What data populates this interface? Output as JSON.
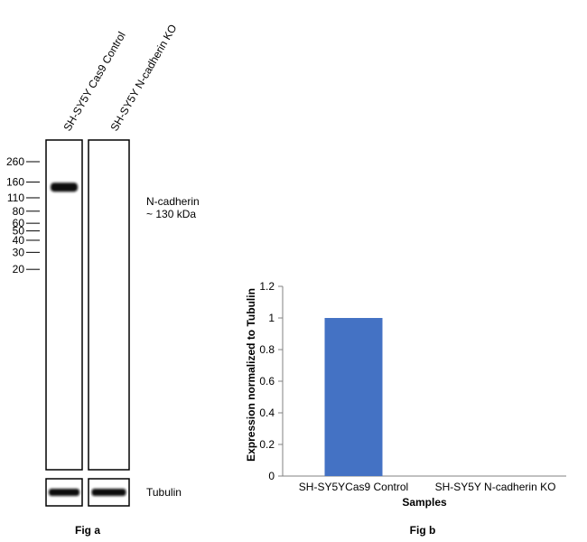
{
  "chart_data": [
    {
      "type": "western-blot",
      "lanes": [
        "SH-SY5Y Cas9 Control",
        "SH-SY5Y N-cadherin KO"
      ],
      "markers": [
        260,
        160,
        110,
        80,
        60,
        50,
        40,
        30,
        20
      ],
      "band_label_line1": "N-cadherin",
      "band_label_line2": "~ 130 kDa",
      "band_lanes_present": [
        true,
        false
      ],
      "loading_control_label": "Tubulin",
      "loading_lanes_present": [
        true,
        true
      ],
      "caption": "Fig a"
    },
    {
      "type": "bar",
      "categories": [
        "SH-SY5YCas9 Control",
        "SH-SY5Y N-cadherin KO"
      ],
      "values": [
        1,
        0
      ],
      "ylabel": "Expression normalized to Tubulin",
      "xlabel": "Samples",
      "ylim": [
        0,
        1.2
      ],
      "yticks": [
        "0",
        "0.2",
        "0.4",
        "0.6",
        "0.8",
        "1",
        "1.2"
      ],
      "bar_color": "#4472C4",
      "grid": false,
      "caption": "Fig b"
    }
  ]
}
